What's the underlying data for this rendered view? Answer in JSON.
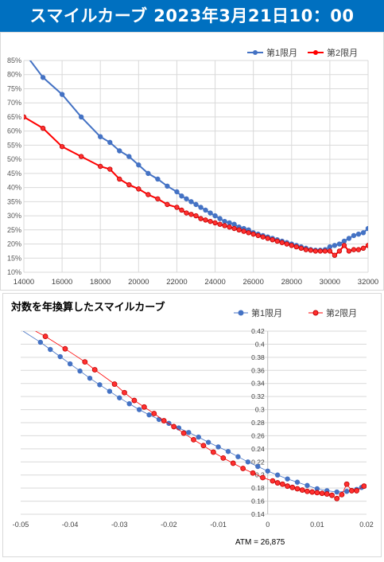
{
  "header": {
    "title": "スマイルカーブ 2023年3月21日10：00"
  },
  "chart_data": [
    {
      "type": "line",
      "title": "",
      "xlabel": "",
      "ylabel": "",
      "xlim": [
        14000,
        32000
      ],
      "ylim": [
        0.1,
        0.85
      ],
      "x_ticks": [
        "14000",
        "16000",
        "18000",
        "20000",
        "22000",
        "24000",
        "26000",
        "28000",
        "30000",
        "32000"
      ],
      "y_ticks": [
        "10%",
        "15%",
        "20%",
        "25%",
        "30%",
        "35%",
        "40%",
        "45%",
        "50%",
        "55%",
        "60%",
        "65%",
        "70%",
        "75%",
        "80%",
        "85%"
      ],
      "grid": true,
      "legend": "top-right",
      "series": [
        {
          "name": "第1限月",
          "color": "#4472c4",
          "points": [
            [
              14000,
              0.88
            ],
            [
              15000,
              0.79
            ],
            [
              16000,
              0.73
            ],
            [
              17000,
              0.65
            ],
            [
              18000,
              0.58
            ],
            [
              18500,
              0.56
            ],
            [
              19000,
              0.53
            ],
            [
              19500,
              0.51
            ],
            [
              20000,
              0.48
            ],
            [
              20500,
              0.45
            ],
            [
              21000,
              0.43
            ],
            [
              21500,
              0.405
            ],
            [
              22000,
              0.385
            ],
            [
              22250,
              0.37
            ],
            [
              22500,
              0.36
            ],
            [
              22750,
              0.35
            ],
            [
              23000,
              0.34
            ],
            [
              23250,
              0.33
            ],
            [
              23500,
              0.32
            ],
            [
              23750,
              0.31
            ],
            [
              24000,
              0.3
            ],
            [
              24250,
              0.29
            ],
            [
              24500,
              0.28
            ],
            [
              24750,
              0.275
            ],
            [
              25000,
              0.27
            ],
            [
              25250,
              0.26
            ],
            [
              25500,
              0.255
            ],
            [
              25750,
              0.25
            ],
            [
              26000,
              0.24
            ],
            [
              26250,
              0.235
            ],
            [
              26500,
              0.23
            ],
            [
              26750,
              0.225
            ],
            [
              27000,
              0.22
            ],
            [
              27250,
              0.215
            ],
            [
              27500,
              0.21
            ],
            [
              27750,
              0.205
            ],
            [
              28000,
              0.2
            ],
            [
              28250,
              0.195
            ],
            [
              28500,
              0.19
            ],
            [
              28750,
              0.185
            ],
            [
              29000,
              0.18
            ],
            [
              29250,
              0.178
            ],
            [
              29500,
              0.178
            ],
            [
              29750,
              0.18
            ],
            [
              30000,
              0.19
            ],
            [
              30250,
              0.195
            ],
            [
              30500,
              0.2
            ],
            [
              30750,
              0.21
            ],
            [
              31000,
              0.22
            ],
            [
              31250,
              0.23
            ],
            [
              31500,
              0.235
            ],
            [
              31750,
              0.24
            ],
            [
              32000,
              0.255
            ]
          ]
        },
        {
          "name": "第2限月",
          "color": "#ff0000",
          "points": [
            [
              14000,
              0.65
            ],
            [
              15000,
              0.61
            ],
            [
              16000,
              0.545
            ],
            [
              17000,
              0.51
            ],
            [
              18000,
              0.475
            ],
            [
              18500,
              0.465
            ],
            [
              19000,
              0.43
            ],
            [
              19500,
              0.41
            ],
            [
              20000,
              0.395
            ],
            [
              20500,
              0.375
            ],
            [
              21000,
              0.36
            ],
            [
              21500,
              0.34
            ],
            [
              22000,
              0.33
            ],
            [
              22250,
              0.32
            ],
            [
              22500,
              0.31
            ],
            [
              22750,
              0.305
            ],
            [
              23000,
              0.3
            ],
            [
              23250,
              0.29
            ],
            [
              23500,
              0.285
            ],
            [
              23750,
              0.28
            ],
            [
              24000,
              0.275
            ],
            [
              24250,
              0.27
            ],
            [
              24500,
              0.265
            ],
            [
              24750,
              0.26
            ],
            [
              25000,
              0.255
            ],
            [
              25250,
              0.25
            ],
            [
              25500,
              0.245
            ],
            [
              25750,
              0.24
            ],
            [
              26000,
              0.235
            ],
            [
              26250,
              0.23
            ],
            [
              26500,
              0.225
            ],
            [
              26750,
              0.22
            ],
            [
              27000,
              0.215
            ],
            [
              27250,
              0.21
            ],
            [
              27500,
              0.205
            ],
            [
              27750,
              0.2
            ],
            [
              28000,
              0.195
            ],
            [
              28250,
              0.19
            ],
            [
              28500,
              0.185
            ],
            [
              28750,
              0.18
            ],
            [
              29000,
              0.178
            ],
            [
              29250,
              0.175
            ],
            [
              29500,
              0.175
            ],
            [
              29750,
              0.175
            ],
            [
              30000,
              0.175
            ],
            [
              30250,
              0.16
            ],
            [
              30500,
              0.175
            ],
            [
              30750,
              0.195
            ],
            [
              31000,
              0.175
            ],
            [
              31250,
              0.18
            ],
            [
              31500,
              0.18
            ],
            [
              31750,
              0.185
            ],
            [
              32000,
              0.195
            ]
          ]
        }
      ]
    },
    {
      "type": "scatter",
      "title": "対数を年換算したスマイルカーブ",
      "xlabel": "",
      "ylabel": "",
      "annotation": "ATM = 26,875",
      "xlim": [
        -0.05,
        0.02
      ],
      "ylim": [
        0.14,
        0.42
      ],
      "x_ticks": [
        "-0.05",
        "-0.04",
        "-0.03",
        "-0.02",
        "-0.01",
        "0",
        "0.01",
        "0.02"
      ],
      "y_ticks": [
        "0.14",
        "0.16",
        "0.18",
        "0.2",
        "0.22",
        "0.24",
        "0.26",
        "0.28",
        "0.3",
        "0.32",
        "0.34",
        "0.36",
        "0.38",
        "0.4",
        "0.42"
      ],
      "grid": true,
      "legend": "top-right",
      "series": [
        {
          "name": "第1限月",
          "color": "#4472c4",
          "points": [
            [
              -0.046,
              0.403
            ],
            [
              -0.044,
              0.392
            ],
            [
              -0.042,
              0.381
            ],
            [
              -0.04,
              0.37
            ],
            [
              -0.038,
              0.359
            ],
            [
              -0.036,
              0.348
            ],
            [
              -0.034,
              0.338
            ],
            [
              -0.032,
              0.328
            ],
            [
              -0.03,
              0.318
            ],
            [
              -0.028,
              0.309
            ],
            [
              -0.026,
              0.3
            ],
            [
              -0.024,
              0.292
            ],
            [
              -0.022,
              0.285
            ],
            [
              -0.02,
              0.279
            ],
            [
              -0.018,
              0.272
            ],
            [
              -0.016,
              0.265
            ],
            [
              -0.014,
              0.258
            ],
            [
              -0.012,
              0.25
            ],
            [
              -0.01,
              0.243
            ],
            [
              -0.008,
              0.236
            ],
            [
              -0.006,
              0.228
            ],
            [
              -0.004,
              0.22
            ],
            [
              -0.002,
              0.213
            ],
            [
              0.0,
              0.206
            ],
            [
              0.002,
              0.2
            ],
            [
              0.004,
              0.194
            ],
            [
              0.006,
              0.189
            ],
            [
              0.008,
              0.184
            ],
            [
              0.01,
              0.179
            ],
            [
              0.012,
              0.176
            ],
            [
              0.014,
              0.174
            ],
            [
              0.016,
              0.175
            ],
            [
              0.018,
              0.178
            ],
            [
              0.019,
              0.181
            ]
          ]
        },
        {
          "name": "第2限月",
          "color": "#ff0000",
          "points": [
            [
              -0.045,
              0.412
            ],
            [
              -0.041,
              0.393
            ],
            [
              -0.037,
              0.373
            ],
            [
              -0.035,
              0.361
            ],
            [
              -0.031,
              0.339
            ],
            [
              -0.029,
              0.326
            ],
            [
              -0.027,
              0.314
            ],
            [
              -0.025,
              0.304
            ],
            [
              -0.023,
              0.294
            ],
            [
              -0.021,
              0.283
            ],
            [
              -0.019,
              0.274
            ],
            [
              -0.017,
              0.264
            ],
            [
              -0.015,
              0.254
            ],
            [
              -0.013,
              0.245
            ],
            [
              -0.011,
              0.235
            ],
            [
              -0.009,
              0.226
            ],
            [
              -0.007,
              0.218
            ],
            [
              -0.005,
              0.21
            ],
            [
              -0.003,
              0.203
            ],
            [
              -0.001,
              0.196
            ],
            [
              0.001,
              0.191
            ],
            [
              0.002,
              0.188
            ],
            [
              0.003,
              0.186
            ],
            [
              0.004,
              0.183
            ],
            [
              0.005,
              0.181
            ],
            [
              0.006,
              0.179
            ],
            [
              0.007,
              0.177
            ],
            [
              0.008,
              0.175
            ],
            [
              0.009,
              0.174
            ],
            [
              0.01,
              0.173
            ],
            [
              0.011,
              0.172
            ],
            [
              0.012,
              0.171
            ],
            [
              0.013,
              0.169
            ],
            [
              0.014,
              0.164
            ],
            [
              0.015,
              0.17
            ],
            [
              0.016,
              0.186
            ],
            [
              0.017,
              0.176
            ],
            [
              0.018,
              0.176
            ],
            [
              0.0195,
              0.183
            ]
          ]
        }
      ]
    }
  ]
}
